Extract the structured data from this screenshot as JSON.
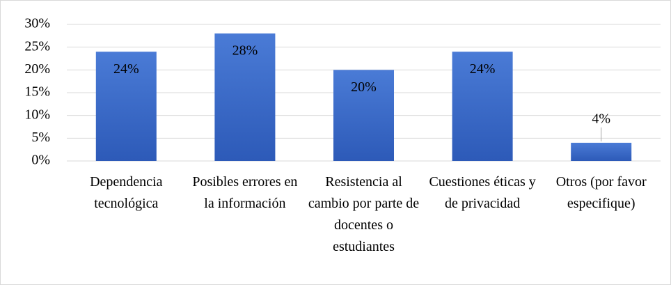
{
  "chart_data": {
    "type": "bar",
    "categories": [
      "Dependencia tecnológica",
      "Posibles errores en la información",
      "Resistencia al cambio por parte de docentes o estudiantes",
      "Cuestiones éticas y de privacidad",
      "Otros (por favor especifique)"
    ],
    "values": [
      24,
      28,
      20,
      24,
      4
    ],
    "value_labels": [
      "24%",
      "28%",
      "20%",
      "24%",
      "4%"
    ],
    "color": "#3a69c6",
    "ylim": [
      0,
      30
    ],
    "yticks": [
      {
        "value": 0,
        "label": "0%"
      },
      {
        "value": 5,
        "label": "5%"
      },
      {
        "value": 10,
        "label": "10%"
      },
      {
        "value": 15,
        "label": "15%"
      },
      {
        "value": 20,
        "label": "20%"
      },
      {
        "value": 25,
        "label": "25%"
      },
      {
        "value": 30,
        "label": "30%"
      }
    ],
    "grid": true
  }
}
